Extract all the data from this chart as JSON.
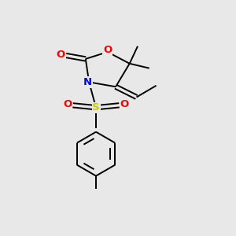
{
  "background_color": "#e8e8e8",
  "atom_colors": {
    "O": "#ff0000",
    "N": "#0000ff",
    "S": "#cccc00",
    "C": "#000000"
  },
  "figsize": [
    3.0,
    3.0
  ],
  "dpi": 100,
  "lw": 1.4,
  "font_size": 9.5
}
